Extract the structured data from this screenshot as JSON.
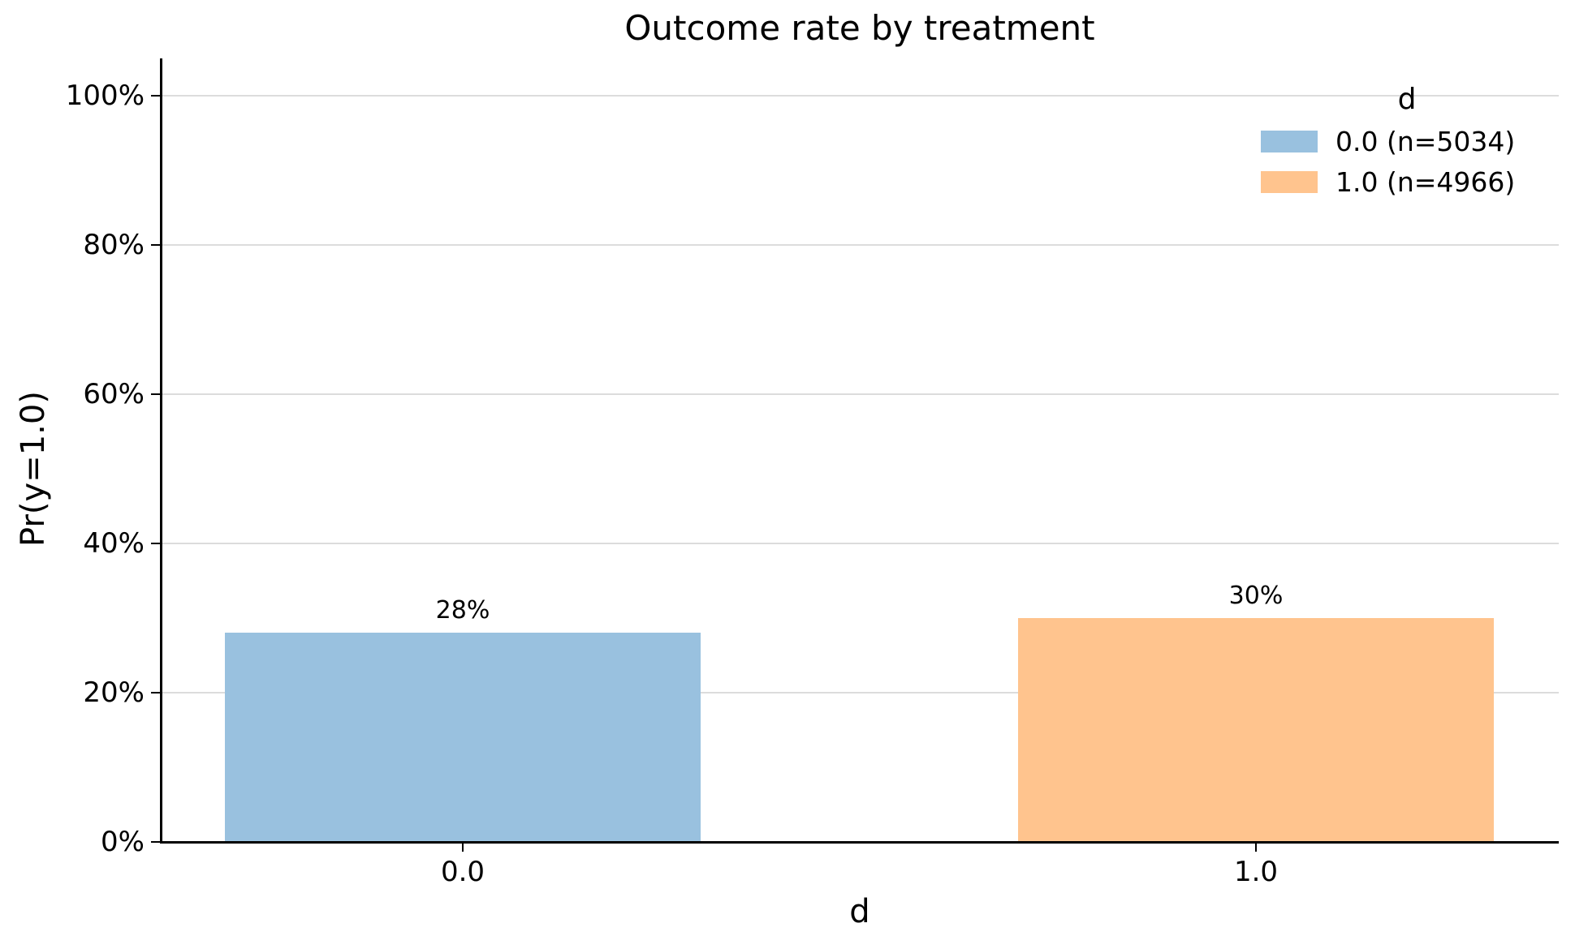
{
  "chart_data": {
    "type": "bar",
    "title": "Outcome rate by treatment",
    "xlabel": "d",
    "ylabel": "Pr(y=1.0)",
    "ylim": [
      0,
      105
    ],
    "grid": "horizontal",
    "legend_position": "upper right",
    "categories": [
      "0.0",
      "1.0"
    ],
    "bars": [
      {
        "category": "0.0",
        "value": 28,
        "label": "28%",
        "n": 5034,
        "color": "#99C1DF"
      },
      {
        "category": "1.0",
        "value": 30,
        "label": "30%",
        "n": 4966,
        "color": "#FFC48E"
      }
    ],
    "yticks": [
      {
        "value": 0,
        "label": "0%"
      },
      {
        "value": 20,
        "label": "20%"
      },
      {
        "value": 40,
        "label": "40%"
      },
      {
        "value": 60,
        "label": "60%"
      },
      {
        "value": 80,
        "label": "80%"
      },
      {
        "value": 100,
        "label": "100%"
      }
    ],
    "legend": {
      "title": "d",
      "entries": [
        {
          "label": "0.0 (n=5034)",
          "color": "#99C1DF"
        },
        {
          "label": "1.0 (n=4966)",
          "color": "#FFC48E"
        }
      ]
    },
    "colors": {
      "grid": "#DCDCDC",
      "spine": "#000000",
      "text": "#000000",
      "background": "#FFFFFF"
    }
  }
}
